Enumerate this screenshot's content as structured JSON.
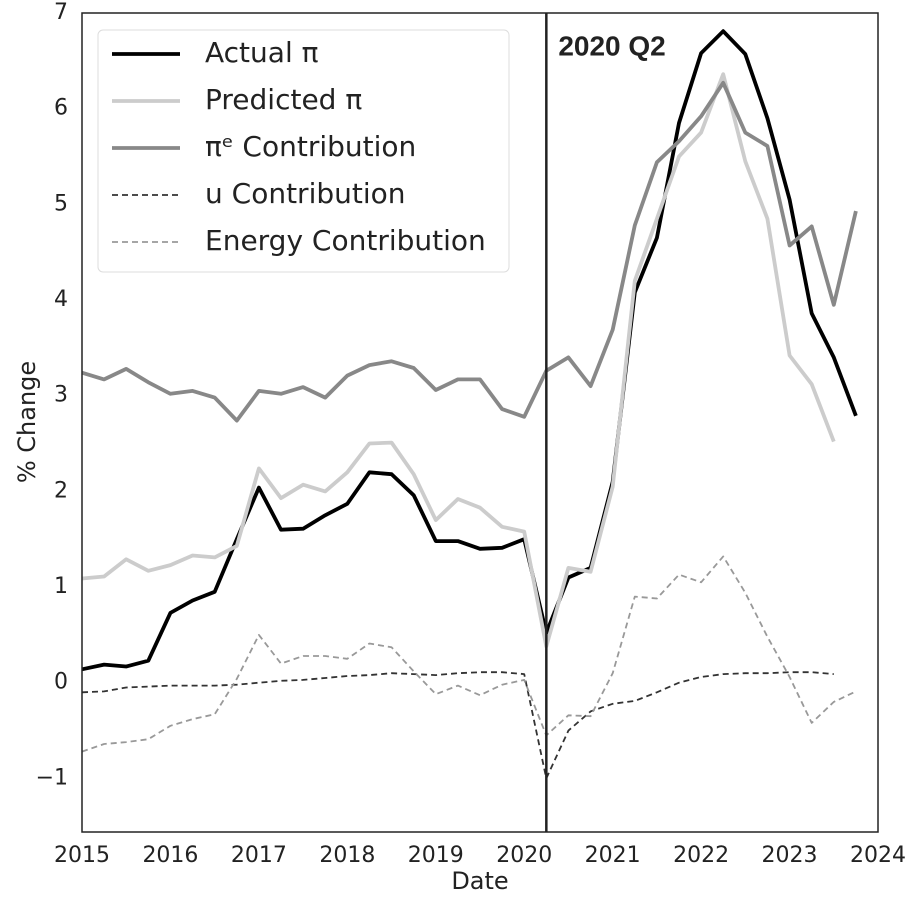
{
  "chart_data": {
    "type": "line",
    "xlabel": "Date",
    "ylabel": "% Change",
    "xlim": [
      2015,
      2024
    ],
    "ylim": [
      -1.56,
      7
    ],
    "xticks": [
      2015,
      2016,
      2017,
      2018,
      2019,
      2020,
      2021,
      2022,
      2023,
      2024
    ],
    "yticks": [
      {
        "value": -1,
        "label": "−1"
      },
      0,
      1,
      2,
      3,
      4,
      5,
      6,
      7
    ],
    "grid": false,
    "legend": "upper left",
    "annotation": {
      "text": "2020 Q2",
      "x": 2020.25
    },
    "x": [
      2015,
      2015.25,
      2015.5,
      2015.75,
      2016,
      2016.25,
      2016.5,
      2016.75,
      2017,
      2017.25,
      2017.5,
      2017.75,
      2018,
      2018.25,
      2018.5,
      2018.75,
      2019,
      2019.25,
      2019.5,
      2019.75,
      2020,
      2020.25,
      2020.5,
      2020.75,
      2021,
      2021.25,
      2021.5,
      2021.75,
      2022,
      2022.25,
      2022.5,
      2022.75,
      2023,
      2023.25,
      2023.5,
      2023.75
    ],
    "series": [
      {
        "name": "Actual π",
        "color": "#000000",
        "linestyle": "solid",
        "values": [
          0.14,
          0.19,
          0.17,
          0.23,
          0.73,
          0.86,
          0.95,
          1.5,
          2.04,
          1.6,
          1.61,
          1.75,
          1.87,
          2.2,
          2.18,
          1.96,
          1.48,
          1.48,
          1.4,
          1.41,
          1.5,
          0.52,
          1.1,
          1.2,
          2.1,
          4.08,
          4.65,
          5.85,
          6.58,
          6.81,
          6.57,
          5.9,
          5.05,
          3.86,
          3.4,
          2.79
        ]
      },
      {
        "name": "Predicted π",
        "color": "#cccccc",
        "linestyle": "solid",
        "values": [
          1.09,
          1.11,
          1.29,
          1.17,
          1.23,
          1.33,
          1.31,
          1.43,
          2.24,
          1.93,
          2.07,
          2.0,
          2.2,
          2.5,
          2.51,
          2.18,
          1.7,
          1.92,
          1.83,
          1.63,
          1.58,
          0.38,
          1.2,
          1.16,
          2.05,
          4.2,
          4.85,
          5.5,
          5.75,
          6.36,
          5.45,
          4.85,
          3.42,
          3.12,
          2.52,
          null
        ]
      },
      {
        "name": "πᵉ Contribution",
        "color": "#888888",
        "linestyle": "solid",
        "values": [
          3.24,
          3.17,
          3.28,
          3.14,
          3.02,
          3.05,
          2.98,
          2.74,
          3.05,
          3.02,
          3.09,
          2.98,
          3.21,
          3.32,
          3.36,
          3.29,
          3.06,
          3.17,
          3.17,
          2.86,
          2.78,
          3.26,
          3.4,
          3.1,
          3.69,
          4.78,
          5.44,
          5.66,
          5.92,
          6.27,
          5.75,
          5.61,
          4.57,
          4.77,
          3.95,
          4.93
        ]
      },
      {
        "name": "u Contribution",
        "color": "#333333",
        "linestyle": "dashed",
        "values": [
          -0.1,
          -0.09,
          -0.05,
          -0.04,
          -0.03,
          -0.03,
          -0.03,
          -0.02,
          0.0,
          0.02,
          0.03,
          0.05,
          0.07,
          0.08,
          0.1,
          0.09,
          0.08,
          0.1,
          0.11,
          0.11,
          0.09,
          -1.0,
          -0.5,
          -0.3,
          -0.22,
          -0.19,
          -0.1,
          0.0,
          0.06,
          0.09,
          0.1,
          0.1,
          0.11,
          0.11,
          0.09,
          null
        ]
      },
      {
        "name": "Energy Contribution",
        "color": "#999999",
        "linestyle": "dashed",
        "values": [
          -0.72,
          -0.64,
          -0.62,
          -0.59,
          -0.45,
          -0.38,
          -0.33,
          0.04,
          0.5,
          0.2,
          0.28,
          0.28,
          0.25,
          0.41,
          0.37,
          0.12,
          -0.12,
          -0.03,
          -0.13,
          -0.02,
          0.03,
          -0.55,
          -0.34,
          -0.35,
          0.1,
          0.9,
          0.88,
          1.13,
          1.05,
          1.32,
          0.94,
          0.48,
          0.06,
          -0.42,
          -0.2,
          -0.09
        ]
      }
    ]
  }
}
